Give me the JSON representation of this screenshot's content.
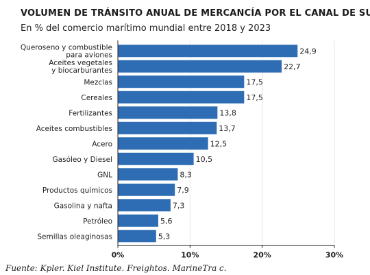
{
  "chart_data": {
    "type": "bar",
    "orientation": "horizontal",
    "title": "VOLUMEN DE TRÁNSITO ANUAL DE MERCANCÍA POR EL CANAL DE SUEZ",
    "subtitle": "En % del comercio marítimo mundial entre 2018 y 2023",
    "categories": [
      [
        "Queroseno y combustible",
        "para aviones"
      ],
      [
        "Aceites vegetales",
        "y biocarburantes"
      ],
      [
        "Mezclas"
      ],
      [
        "Cereales"
      ],
      [
        "Fertilizantes"
      ],
      [
        "Aceites combustibles"
      ],
      [
        "Acero"
      ],
      [
        "Gasóleo y Diesel"
      ],
      [
        "GNL"
      ],
      [
        "Productos químicos"
      ],
      [
        "Gasolina y nafta"
      ],
      [
        "Petróleo"
      ],
      [
        "Semillas oleaginosas"
      ]
    ],
    "values": [
      24.9,
      22.7,
      17.5,
      17.5,
      13.8,
      13.7,
      12.5,
      10.5,
      8.3,
      7.9,
      7.3,
      5.6,
      5.3
    ],
    "value_labels": [
      "24,9",
      "22,7",
      "17,5",
      "17,5",
      "13,8",
      "13,7",
      "12,5",
      "10,5",
      "8,3",
      "7,9",
      "7,3",
      "5,6",
      "5,3"
    ],
    "x_ticks": [
      0,
      10,
      20,
      30
    ],
    "x_tick_labels": [
      "0%",
      "10%",
      "20%",
      "30%"
    ],
    "xlim": [
      0,
      30
    ],
    "grid": "vertical",
    "bar_color": "#2e6db4",
    "gridline_color": "#e6e6e6",
    "axis_color": "#222222"
  },
  "source": "Fuente: Kpler. Kiel Institute. Freightos. MarineTra c."
}
